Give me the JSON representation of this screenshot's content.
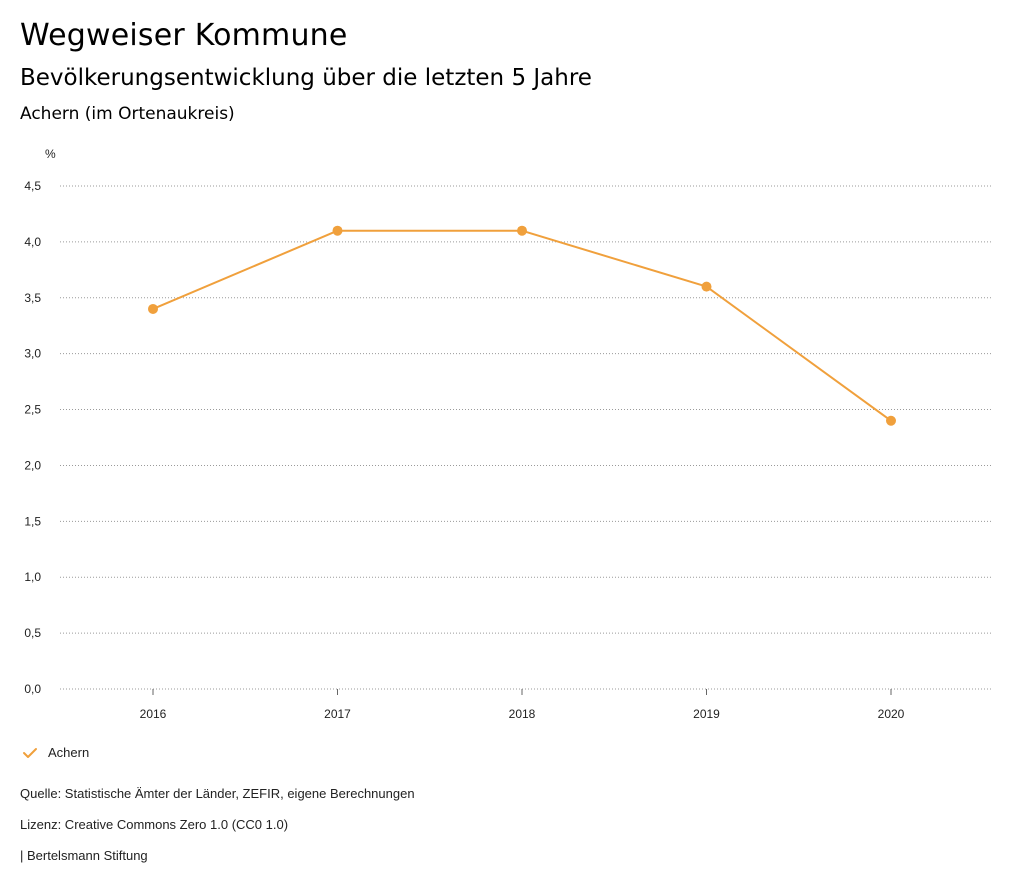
{
  "header": {
    "title": "Wegweiser Kommune",
    "subtitle": "Bevölkerungsentwicklung über die letzten 5 Jahre",
    "region": "Achern (im Ortenaukreis)"
  },
  "chart_data": {
    "type": "line",
    "ylabel": "%",
    "x": [
      "2016",
      "2017",
      "2018",
      "2019",
      "2020"
    ],
    "series": [
      {
        "name": "Achern",
        "values": [
          3.4,
          4.1,
          4.1,
          3.6,
          2.4
        ],
        "color": "#f0a03c"
      }
    ],
    "ylim": [
      0,
      4.5
    ],
    "yticks": [
      "0,0",
      "0,5",
      "1,0",
      "1,5",
      "2,0",
      "2,5",
      "3,0",
      "3,5",
      "4,0",
      "4,5"
    ],
    "grid": true,
    "legend": "bottom-left"
  },
  "legend": {
    "label": "Achern",
    "icon": "check-icon"
  },
  "footer": {
    "source": "Quelle: Statistische Ämter der Länder, ZEFIR, eigene Berechnungen",
    "license": "Lizenz: Creative Commons Zero 1.0 (CC0 1.0)",
    "brand": "| Bertelsmann Stiftung"
  }
}
